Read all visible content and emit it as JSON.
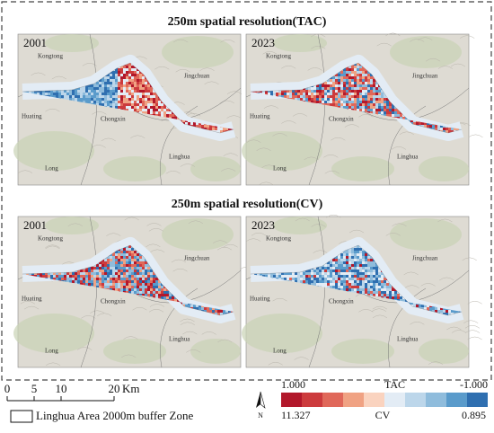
{
  "sections": [
    {
      "title": "250m spatial resolution(TAC)",
      "panels": [
        {
          "year": "2001",
          "places": [
            "Kongtong",
            "Jingchuan",
            "Huating",
            "Chongxin",
            "Linghua",
            "Long"
          ]
        },
        {
          "year": "2023",
          "places": [
            "Kongtong",
            "Jingchuan",
            "Huating",
            "Chongxin",
            "Linghua",
            "Long"
          ]
        }
      ]
    },
    {
      "title": "250m spatial resolution(CV)",
      "panels": [
        {
          "year": "2001",
          "places": [
            "Kongtong",
            "Jingchuan",
            "Huating",
            "Chongxin",
            "Linghua",
            "Long"
          ]
        },
        {
          "year": "2023",
          "places": [
            "Kongtong",
            "Jingchuan",
            "Huating",
            "Chongxin",
            "Linghua",
            "Long"
          ]
        }
      ]
    }
  ],
  "scale_bar": {
    "labels": [
      "0",
      "5",
      "10",
      "20"
    ],
    "unit": "Km"
  },
  "north": "N",
  "boundary_legend": "Linghua Area 2000m buffer Zone",
  "colorbar": {
    "tac_label": "TAC",
    "cv_label": "CV",
    "tac_start": "1.000",
    "tac_end": "-1.000",
    "cv_start": "11.327",
    "cv_end": "0.895",
    "colors": [
      "#b2182b",
      "#cc3b3d",
      "#e0685a",
      "#f0a283",
      "#fad3bf",
      "#e3ecf5",
      "#bcd6ea",
      "#8fbcdc",
      "#5a9bcb",
      "#2f6fb0"
    ]
  }
}
